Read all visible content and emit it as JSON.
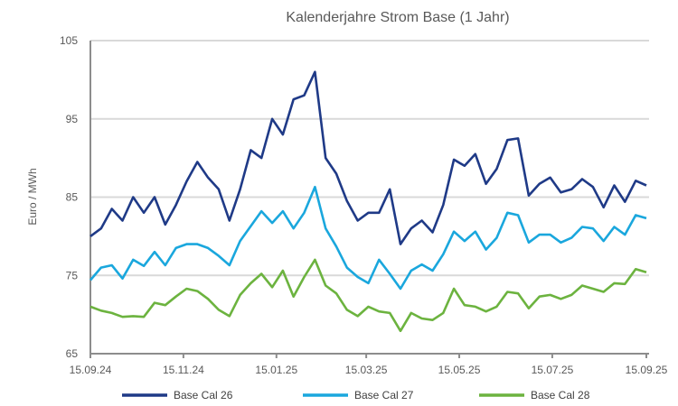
{
  "chart_data": {
    "type": "line",
    "title": "Kalenderjahre Strom Base (1 Jahr)",
    "xlabel": "",
    "ylabel": "Euro / MWh",
    "ylim": [
      65,
      105
    ],
    "yticks": [
      65,
      75,
      85,
      95,
      105
    ],
    "xlim": [
      0,
      52
    ],
    "x_unit": "weeks",
    "xtick_labels": [
      "15.09.24",
      "15.11.24",
      "15.01.25",
      "15.03.25",
      "15.05.25",
      "15.07.25",
      "15.09.25"
    ],
    "xtick_positions": [
      0,
      8.7,
      17.4,
      25.8,
      34.5,
      43.2,
      52
    ],
    "grid": "horizontal",
    "legend_position": "bottom",
    "series": [
      {
        "name": "Base Cal 26",
        "color": "#1f3a87",
        "values": [
          80,
          81,
          83.5,
          82,
          85,
          83,
          85,
          81.5,
          84,
          87,
          89.5,
          87.5,
          86,
          82,
          86,
          91,
          90,
          95,
          93,
          97.5,
          98,
          101,
          90,
          88,
          84.5,
          82,
          83,
          83,
          86,
          79,
          81,
          82,
          80.5,
          84,
          89.8,
          89,
          90.5,
          86.7,
          88.6,
          92.3,
          92.5,
          85.2,
          86.7,
          87.5,
          85.6,
          86,
          87.3,
          86.3,
          83.7,
          86.5,
          84.4,
          87.1,
          86.5
        ]
      },
      {
        "name": "Base Cal 27",
        "color": "#1aa7dd",
        "values": [
          74.4,
          76,
          76.3,
          74.6,
          77,
          76.2,
          78,
          76.3,
          78.5,
          79,
          79,
          78.5,
          77.5,
          76.3,
          79.4,
          81.3,
          83.2,
          81.7,
          83.2,
          81,
          83,
          86.3,
          81,
          78.7,
          76,
          74.8,
          74,
          77,
          75.2,
          73.3,
          75.6,
          76.4,
          75.6,
          77.7,
          80.6,
          79.4,
          80.6,
          78.3,
          79.8,
          83,
          82.7,
          79.2,
          80.2,
          80.2,
          79.2,
          79.8,
          81.2,
          81,
          79.4,
          81.2,
          80.2,
          82.7,
          82.3
        ]
      },
      {
        "name": "Base Cal 28",
        "color": "#6cb33f",
        "values": [
          71,
          70.5,
          70.2,
          69.7,
          69.8,
          69.7,
          71.5,
          71.2,
          72.3,
          73.3,
          73,
          72,
          70.6,
          69.8,
          72.5,
          74,
          75.2,
          73.5,
          75.6,
          72.3,
          74.8,
          77,
          73.7,
          72.7,
          70.6,
          69.8,
          71,
          70.4,
          70.2,
          67.9,
          70.2,
          69.5,
          69.3,
          70.2,
          73.3,
          71.2,
          71,
          70.4,
          71,
          72.9,
          72.7,
          70.8,
          72.3,
          72.5,
          72,
          72.5,
          73.7,
          73.3,
          72.9,
          74,
          73.9,
          75.8,
          75.4
        ]
      }
    ]
  }
}
